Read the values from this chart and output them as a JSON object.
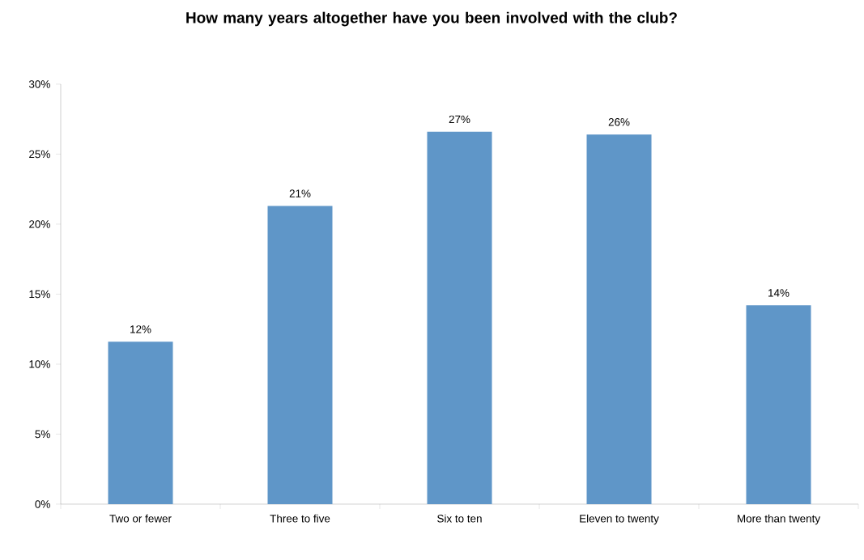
{
  "chart_data": {
    "type": "bar",
    "title": "How many years altogether have you been involved with the club?",
    "categories": [
      "Two or fewer",
      "Three to five",
      "Six to ten",
      "Eleven to twenty",
      "More than twenty"
    ],
    "values": [
      11.6,
      21.3,
      26.6,
      26.4,
      14.2
    ],
    "value_labels": [
      "12%",
      "21%",
      "27%",
      "26%",
      "14%"
    ],
    "color": "#5f96c8",
    "ylim": [
      0,
      30
    ],
    "yticks": [
      {
        "value": 0,
        "label": "0%"
      },
      {
        "value": 5,
        "label": "5%"
      },
      {
        "value": 10,
        "label": "10%"
      },
      {
        "value": 15,
        "label": "15%"
      },
      {
        "value": 20,
        "label": "20%"
      },
      {
        "value": 25,
        "label": "25%"
      },
      {
        "value": 30,
        "label": "30%"
      }
    ],
    "grid": false
  }
}
